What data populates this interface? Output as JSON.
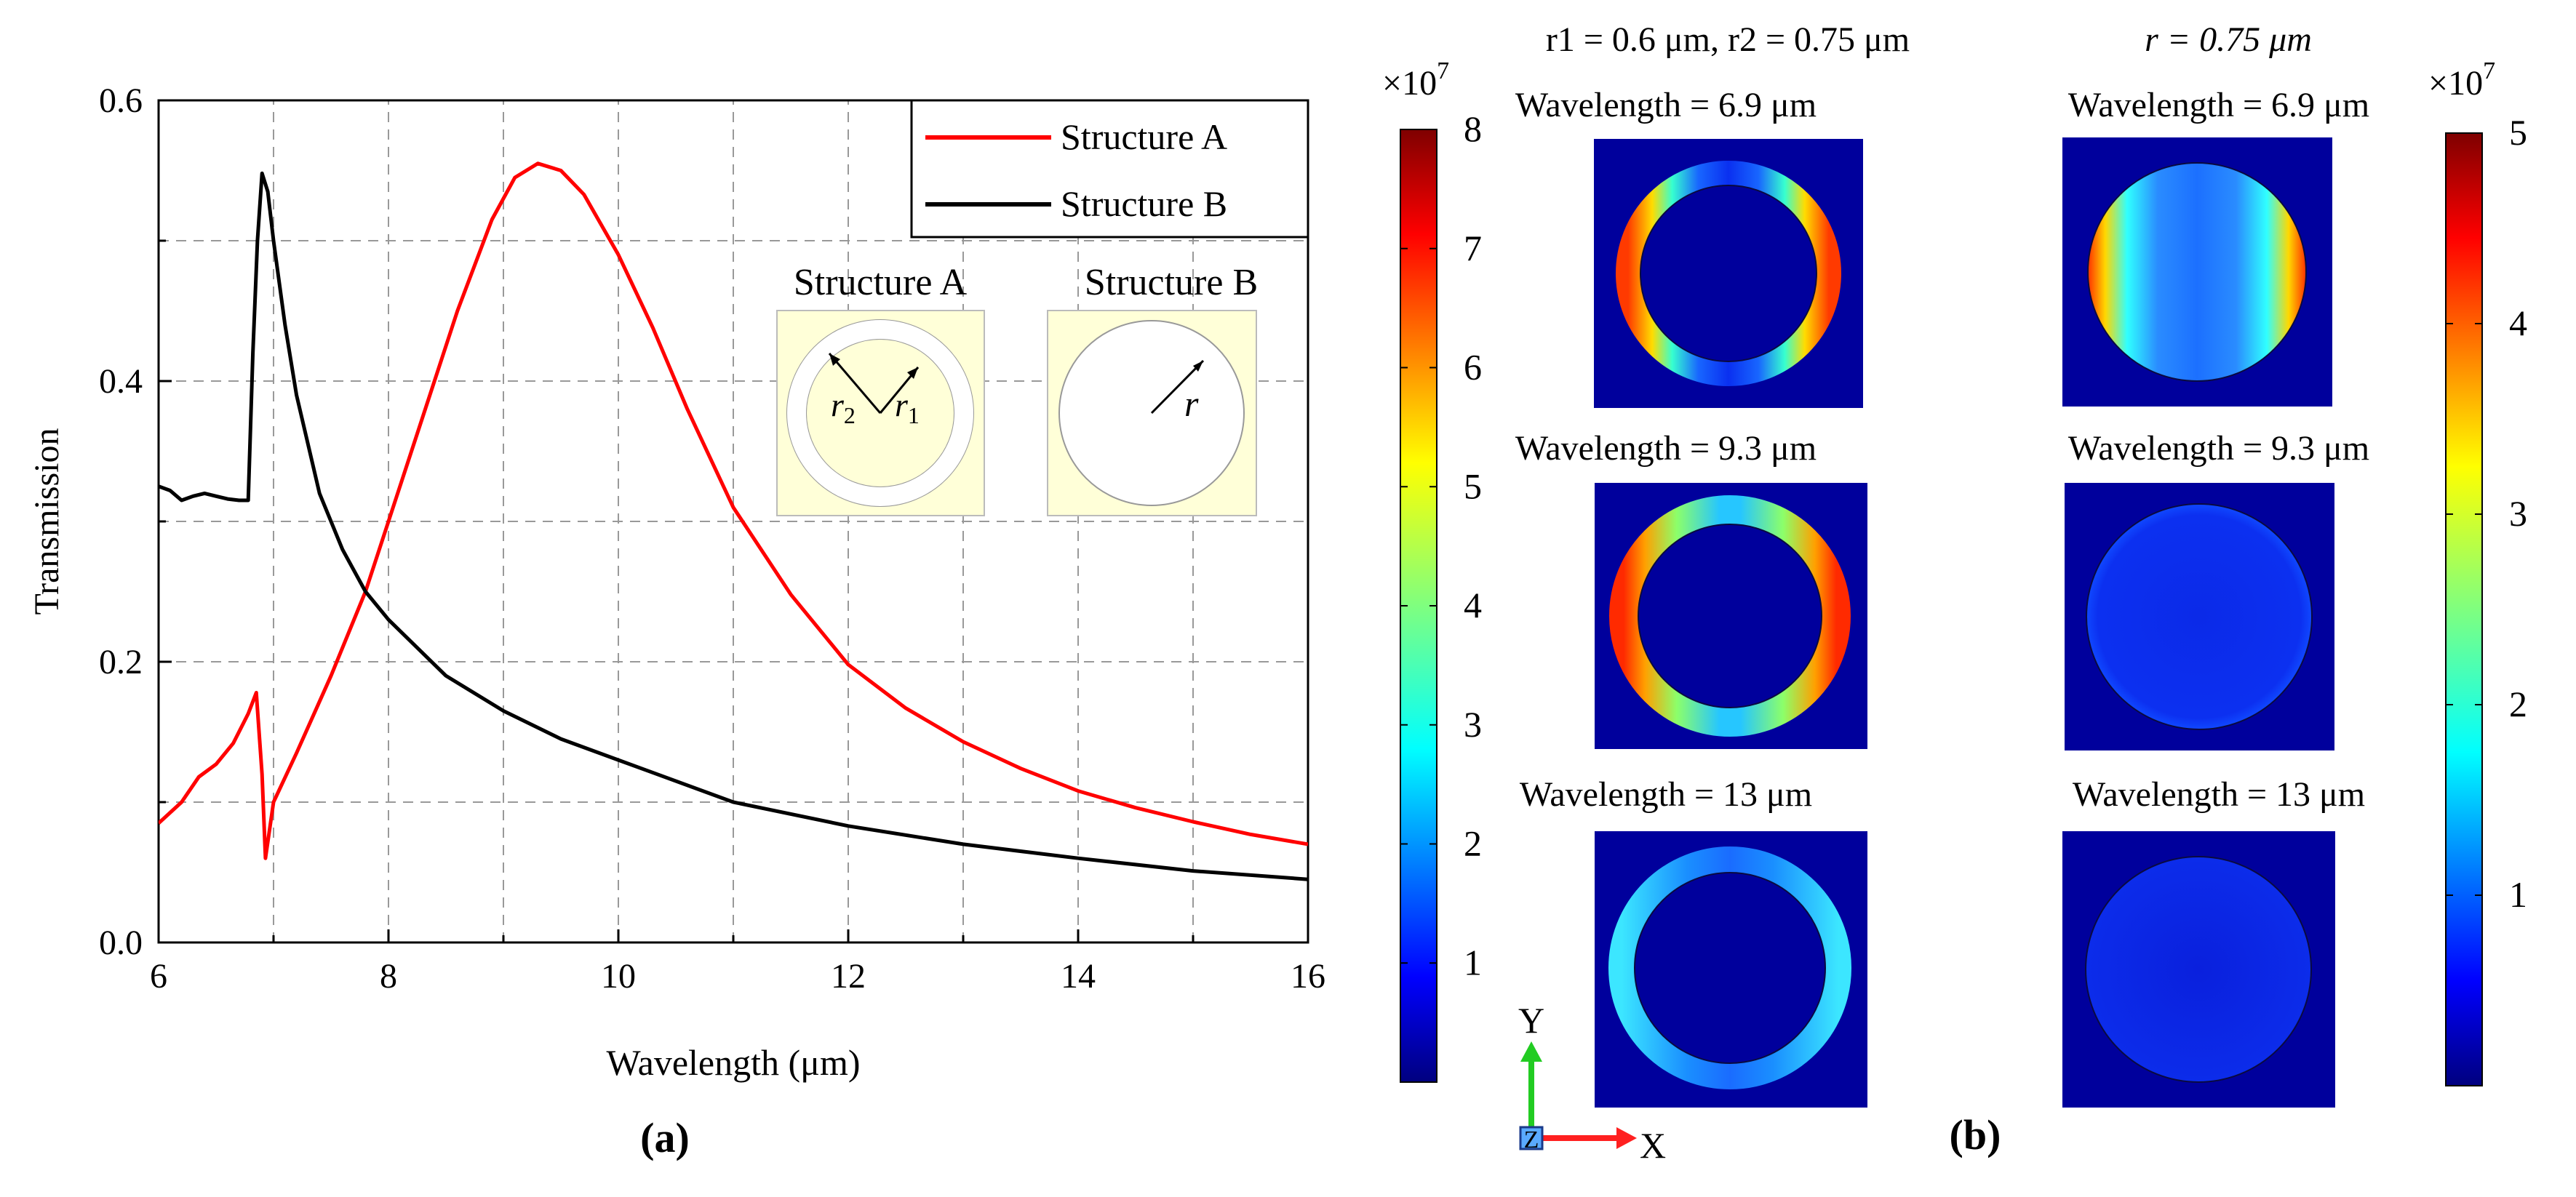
{
  "chart_data": [
    {
      "type": "line",
      "panel_label": "(a)",
      "xlabel": "Wavelength (μm)",
      "ylabel": "Transmission",
      "xlim": [
        6,
        16
      ],
      "ylim": [
        0,
        0.6
      ],
      "xticks": [
        6,
        8,
        10,
        12,
        14,
        16
      ],
      "yticks": [
        0.0,
        0.2,
        0.4,
        0.6
      ],
      "ytick_labels": [
        "0.0",
        "0.2",
        "0.4",
        "0.6"
      ],
      "grid": true,
      "legend_position": "top-right",
      "series": [
        {
          "name": "Structure A",
          "color": "#ff0000",
          "x": [
            6.0,
            6.2,
            6.35,
            6.5,
            6.65,
            6.78,
            6.85,
            6.9,
            6.93,
            7.0,
            7.2,
            7.5,
            7.8,
            8.0,
            8.3,
            8.6,
            8.9,
            9.1,
            9.3,
            9.5,
            9.7,
            10.0,
            10.3,
            10.6,
            11.0,
            11.5,
            12.0,
            12.5,
            13.0,
            13.5,
            14.0,
            14.5,
            15.0,
            15.5,
            16.0
          ],
          "values": [
            0.085,
            0.1,
            0.118,
            0.127,
            0.142,
            0.163,
            0.178,
            0.12,
            0.06,
            0.1,
            0.135,
            0.19,
            0.25,
            0.3,
            0.375,
            0.45,
            0.515,
            0.545,
            0.555,
            0.55,
            0.533,
            0.49,
            0.438,
            0.38,
            0.31,
            0.248,
            0.198,
            0.167,
            0.143,
            0.124,
            0.108,
            0.096,
            0.086,
            0.077,
            0.07
          ]
        },
        {
          "name": "Structure B",
          "color": "#000000",
          "x": [
            6.0,
            6.1,
            6.2,
            6.3,
            6.4,
            6.5,
            6.6,
            6.7,
            6.78,
            6.82,
            6.86,
            6.9,
            6.95,
            7.0,
            7.1,
            7.2,
            7.4,
            7.6,
            7.8,
            8.0,
            8.5,
            9.0,
            9.5,
            10.0,
            11.0,
            12.0,
            13.0,
            14.0,
            15.0,
            16.0
          ],
          "values": [
            0.325,
            0.322,
            0.315,
            0.318,
            0.32,
            0.318,
            0.316,
            0.315,
            0.315,
            0.42,
            0.5,
            0.548,
            0.535,
            0.5,
            0.44,
            0.39,
            0.32,
            0.28,
            0.25,
            0.23,
            0.19,
            0.165,
            0.145,
            0.13,
            0.1,
            0.083,
            0.07,
            0.06,
            0.051,
            0.045
          ]
        }
      ],
      "inset": {
        "structure_a_title": "Structure A",
        "structure_b_title": "Structure B",
        "structure_a_labels": [
          "r2",
          "r1"
        ],
        "structure_b_label": "r",
        "background_color": "#ffffd8"
      }
    },
    {
      "type": "heatmap",
      "panel_label": "(b)",
      "column_headers": [
        "r1 = 0.6 μm, r2 = 0.75 μm",
        "r = 0.75 μm"
      ],
      "row_titles": [
        "Wavelength = 6.9 μm",
        "Wavelength = 9.3 μm",
        "Wavelength = 13 μm"
      ],
      "colorbar_left": {
        "exponent_label": "×10",
        "exponent": "7",
        "ticks": [
          1,
          2,
          3,
          4,
          5,
          6,
          7,
          8
        ],
        "range": [
          0,
          8
        ]
      },
      "colorbar_right": {
        "exponent_label": "×10",
        "exponent": "7",
        "ticks": [
          1,
          2,
          3,
          4,
          5
        ],
        "range": [
          0,
          5
        ]
      },
      "axes_indicator": {
        "y": "Y",
        "x": "X",
        "z": "Z"
      },
      "colors": {
        "background": "#00009c",
        "ring_low": "#1f8fff",
        "ring_mid": "#7fff7f",
        "ring_high": "#ff2000",
        "disk_low": "#0a1fdd"
      }
    }
  ]
}
